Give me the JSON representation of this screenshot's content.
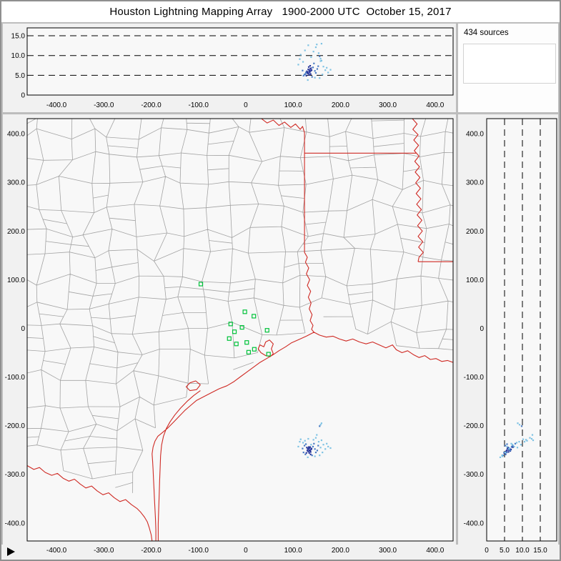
{
  "title": "Houston Lightning Mapping Array   1900-2000 UTC  October 15, 2017",
  "source_count_label": "434 sources",
  "colors": {
    "frame_gray": "#bdbdbd",
    "panel_bg": "#f1f1f1",
    "plot_bg": "#f8f8f8",
    "county_line": "#a3a3a3",
    "state_line": "#cf2a24",
    "station_green": "#00c23a",
    "axis_black": "#000000"
  },
  "chart_data": {
    "type": "scatter",
    "title": "Houston Lightning Mapping Array 1900-2000 UTC October 15, 2017",
    "total_sources": 434,
    "axes": {
      "ew_km": {
        "min": -462,
        "max": 438,
        "label_units": "km east-west",
        "ticks": [
          {
            "v": -400,
            "t": "-400.0"
          },
          {
            "v": -300,
            "t": "-300.0"
          },
          {
            "v": -200,
            "t": "-200.0"
          },
          {
            "v": -100,
            "t": "-100.0"
          },
          {
            "v": 0,
            "t": "0"
          },
          {
            "v": 100,
            "t": "100.0"
          },
          {
            "v": 200,
            "t": "200.0"
          },
          {
            "v": 300,
            "t": "300.0"
          },
          {
            "v": 400,
            "t": "400.0"
          }
        ]
      },
      "ns_km": {
        "min": -437,
        "max": 431,
        "label_units": "km north-south",
        "ticks": [
          {
            "v": 400,
            "t": "400.0"
          },
          {
            "v": 300,
            "t": "300.0"
          },
          {
            "v": 200,
            "t": "200.0"
          },
          {
            "v": 100,
            "t": "100.0"
          },
          {
            "v": 0,
            "t": "0"
          },
          {
            "v": -100,
            "t": "-100.0"
          },
          {
            "v": -200,
            "t": "-200.0"
          },
          {
            "v": -300,
            "t": "-300.0"
          },
          {
            "v": -400,
            "t": "-400.0"
          }
        ]
      },
      "alt_km": {
        "min": 0,
        "max": 17,
        "dashed_levels": [
          5,
          10,
          15
        ],
        "left_ticks": [
          {
            "v": 15,
            "t": "15.0"
          },
          {
            "v": 10,
            "t": "10.0"
          },
          {
            "v": 5,
            "t": "5.0"
          },
          {
            "v": 0,
            "t": "0"
          }
        ],
        "bottom_ticks": [
          {
            "v": 0,
            "t": "0"
          },
          {
            "v": 5,
            "t": "5.0"
          },
          {
            "v": 10,
            "t": "10.0"
          },
          {
            "v": 15,
            "t": "15.0"
          }
        ]
      }
    },
    "source_colors": [
      "#27359b",
      "#4a7bc4",
      "#7fc3e4"
    ],
    "sources": [
      [
        131,
        -247,
        5.8,
        0
      ],
      [
        134,
        -250,
        6.2,
        0
      ],
      [
        136,
        -252,
        6.6,
        0
      ],
      [
        132,
        -253,
        5.4,
        0
      ],
      [
        135,
        -246,
        6.0,
        0
      ],
      [
        138,
        -249,
        6.8,
        0
      ],
      [
        133,
        -244,
        7.1,
        0
      ],
      [
        130,
        -251,
        5.6,
        0
      ],
      [
        137,
        -254,
        6.1,
        0
      ],
      [
        134,
        -256,
        5.1,
        0
      ],
      [
        132,
        -248,
        6.5,
        0
      ],
      [
        136,
        -244,
        7.4,
        0
      ],
      [
        129,
        -245,
        6.0,
        0
      ],
      [
        135,
        -251,
        5.7,
        0
      ],
      [
        139,
        -247,
        6.3,
        0
      ],
      [
        128,
        -256,
        4.9,
        0
      ],
      [
        137,
        -259,
        5.3,
        0
      ],
      [
        124,
        -241,
        5.2,
        1
      ],
      [
        127,
        -238,
        5.7,
        1
      ],
      [
        142,
        -243,
        7.0,
        1
      ],
      [
        146,
        -248,
        6.1,
        1
      ],
      [
        148,
        -255,
        5.6,
        1
      ],
      [
        122,
        -255,
        4.9,
        1
      ],
      [
        144,
        -237,
        8.0,
        1
      ],
      [
        151,
        -251,
        6.6,
        1
      ],
      [
        126,
        -259,
        5.3,
        1
      ],
      [
        140,
        -261,
        4.6,
        1
      ],
      [
        153,
        -241,
        7.3,
        1
      ],
      [
        120,
        -247,
        6.2,
        1
      ],
      [
        114,
        -233,
        9.1,
        2
      ],
      [
        158,
        -245,
        8.6,
        2
      ],
      [
        164,
        -239,
        7.2,
        2
      ],
      [
        168,
        -248,
        6.3,
        2
      ],
      [
        174,
        -243,
        5.7,
        2
      ],
      [
        179,
        -246,
        6.4,
        2
      ],
      [
        116,
        -228,
        10.2,
        2
      ],
      [
        143,
        -229,
        11.0,
        2
      ],
      [
        148,
        -225,
        12.1,
        2
      ],
      [
        156,
        -261,
        4.3,
        2
      ],
      [
        162,
        -255,
        5.2,
        2
      ],
      [
        111,
        -243,
        7.7,
        2
      ],
      [
        131,
        -265,
        3.8,
        2
      ],
      [
        138,
        -239,
        9.6,
        2
      ],
      [
        154,
        -233,
        10.6,
        2
      ],
      [
        121,
        -235,
        8.4,
        2
      ],
      [
        146,
        -263,
        4.4,
        2
      ],
      [
        171,
        -237,
        6.9,
        2
      ],
      [
        132,
        -227,
        12.6,
        2
      ],
      [
        125,
        -231,
        11.3,
        2
      ],
      [
        160,
        -230,
        13.0,
        2
      ],
      [
        150,
        -219,
        12.8,
        2
      ],
      [
        158,
        -198,
        9.2,
        2
      ],
      [
        160,
        -195,
        8.7,
        2
      ],
      [
        156,
        -201,
        9.8,
        1
      ]
    ],
    "stations": [
      [
        -95,
        91
      ],
      [
        -2,
        34
      ],
      [
        17,
        25
      ],
      [
        -32,
        9
      ],
      [
        -8,
        2
      ],
      [
        -24,
        -7
      ],
      [
        -35,
        -21
      ],
      [
        2,
        -29
      ],
      [
        -20,
        -32
      ],
      [
        6,
        -49
      ],
      [
        18,
        -43
      ],
      [
        45,
        -4
      ],
      [
        48,
        -53
      ]
    ],
    "map_lines_red": [
      [
        [
          33,
          431
        ],
        [
          45,
          422
        ],
        [
          58,
          428
        ],
        [
          70,
          417
        ],
        [
          82,
          424
        ],
        [
          95,
          413
        ],
        [
          105,
          420
        ],
        [
          115,
          409
        ],
        [
          120,
          415
        ],
        [
          124,
          402
        ],
        [
          124,
          360
        ]
      ],
      [
        [
          124,
          360
        ],
        [
          360,
          360
        ]
      ],
      [
        [
          352,
          431
        ],
        [
          362,
          420
        ],
        [
          353,
          409
        ],
        [
          364,
          398
        ],
        [
          355,
          387
        ],
        [
          365,
          376
        ],
        [
          356,
          365
        ],
        [
          366,
          354
        ],
        [
          357,
          343
        ],
        [
          367,
          332
        ],
        [
          358,
          321
        ],
        [
          368,
          310
        ],
        [
          359,
          299
        ],
        [
          369,
          288
        ],
        [
          360,
          277
        ],
        [
          370,
          266
        ],
        [
          361,
          255
        ],
        [
          371,
          244
        ],
        [
          362,
          233
        ],
        [
          372,
          222
        ],
        [
          363,
          211
        ],
        [
          373,
          200
        ],
        [
          364,
          189
        ],
        [
          374,
          178
        ],
        [
          365,
          167
        ],
        [
          375,
          156
        ],
        [
          366,
          146
        ],
        [
          364,
          137
        ]
      ],
      [
        [
          364,
          137
        ],
        [
          438,
          137
        ]
      ],
      [
        [
          124,
          360
        ],
        [
          124,
          156
        ],
        [
          130,
          146
        ],
        [
          126,
          136
        ],
        [
          133,
          124
        ],
        [
          128,
          112
        ],
        [
          135,
          100
        ],
        [
          130,
          88
        ],
        [
          137,
          76
        ],
        [
          132,
          64
        ],
        [
          138,
          52
        ],
        [
          134,
          40
        ],
        [
          140,
          28
        ],
        [
          136,
          16
        ],
        [
          142,
          6
        ],
        [
          139,
          -2
        ],
        [
          144,
          -8
        ]
      ],
      [
        [
          144,
          -8
        ],
        [
          128,
          -16
        ],
        [
          110,
          -24
        ],
        [
          96,
          -30
        ],
        [
          84,
          -38
        ],
        [
          70,
          -46
        ],
        [
          58,
          -54
        ],
        [
          44,
          -62
        ],
        [
          30,
          -70
        ],
        [
          16,
          -80
        ],
        [
          2,
          -90
        ],
        [
          -12,
          -100
        ],
        [
          -26,
          -110
        ],
        [
          -40,
          -118
        ],
        [
          -56,
          -124
        ],
        [
          -72,
          -132
        ],
        [
          -88,
          -140
        ],
        [
          -104,
          -148
        ],
        [
          -116,
          -158
        ],
        [
          -128,
          -168
        ],
        [
          -140,
          -180
        ],
        [
          -152,
          -192
        ],
        [
          -164,
          -204
        ],
        [
          -176,
          -214
        ],
        [
          -186,
          -222
        ],
        [
          -192,
          -232
        ],
        [
          -196,
          -244
        ],
        [
          -198,
          -258
        ],
        [
          -197,
          -272
        ],
        [
          -196,
          -290
        ],
        [
          -195,
          -310
        ],
        [
          -194,
          -330
        ],
        [
          -193,
          -350
        ],
        [
          -192,
          -370
        ],
        [
          -191,
          -390
        ],
        [
          -190,
          -414
        ],
        [
          -190,
          -437
        ]
      ],
      [
        [
          144,
          -8
        ],
        [
          156,
          -14
        ],
        [
          170,
          -18
        ],
        [
          184,
          -16
        ],
        [
          198,
          -22
        ],
        [
          212,
          -26
        ],
        [
          226,
          -22
        ],
        [
          240,
          -28
        ],
        [
          254,
          -32
        ],
        [
          268,
          -28
        ],
        [
          282,
          -34
        ],
        [
          296,
          -40
        ],
        [
          310,
          -34
        ],
        [
          318,
          -44
        ],
        [
          330,
          -50
        ],
        [
          342,
          -46
        ],
        [
          354,
          -54
        ],
        [
          366,
          -60
        ],
        [
          378,
          -56
        ],
        [
          390,
          -64
        ],
        [
          402,
          -62
        ],
        [
          414,
          -68
        ],
        [
          426,
          -66
        ],
        [
          438,
          -70
        ]
      ],
      [
        [
          58,
          -52
        ],
        [
          54,
          -42
        ],
        [
          58,
          -32
        ],
        [
          50,
          -24
        ],
        [
          42,
          -28
        ],
        [
          38,
          -38
        ],
        [
          30,
          -34
        ],
        [
          26,
          -42
        ],
        [
          32,
          -50
        ],
        [
          42,
          -56
        ],
        [
          52,
          -58
        ],
        [
          58,
          -52
        ]
      ],
      [
        [
          -96,
          -116
        ],
        [
          -106,
          -108
        ],
        [
          -118,
          -112
        ],
        [
          -126,
          -120
        ],
        [
          -118,
          -128
        ],
        [
          -104,
          -126
        ],
        [
          -96,
          -116
        ]
      ],
      [
        [
          -96,
          -128
        ],
        [
          -110,
          -138
        ],
        [
          -124,
          -150
        ],
        [
          -138,
          -164
        ],
        [
          -150,
          -178
        ],
        [
          -160,
          -192
        ],
        [
          -168,
          -206
        ],
        [
          -174,
          -222
        ],
        [
          -178,
          -240
        ],
        [
          -180,
          -262
        ],
        [
          -181,
          -286
        ],
        [
          -182,
          -312
        ],
        [
          -183,
          -340
        ],
        [
          -184,
          -370
        ],
        [
          -185,
          -402
        ],
        [
          -185,
          -437
        ]
      ],
      [
        [
          -462,
          -282
        ],
        [
          -448,
          -290
        ],
        [
          -436,
          -286
        ],
        [
          -424,
          -296
        ],
        [
          -410,
          -302
        ],
        [
          -398,
          -298
        ],
        [
          -386,
          -308
        ],
        [
          -374,
          -314
        ],
        [
          -362,
          -310
        ],
        [
          -350,
          -320
        ],
        [
          -338,
          -328
        ],
        [
          -326,
          -324
        ],
        [
          -314,
          -334
        ],
        [
          -302,
          -342
        ],
        [
          -290,
          -338
        ],
        [
          -278,
          -348
        ],
        [
          -266,
          -356
        ],
        [
          -254,
          -352
        ],
        [
          -242,
          -362
        ],
        [
          -230,
          -370
        ],
        [
          -222,
          -378
        ],
        [
          -214,
          -388
        ],
        [
          -208,
          -398
        ],
        [
          -204,
          -410
        ],
        [
          -200,
          -424
        ],
        [
          -198,
          -437
        ]
      ]
    ]
  }
}
